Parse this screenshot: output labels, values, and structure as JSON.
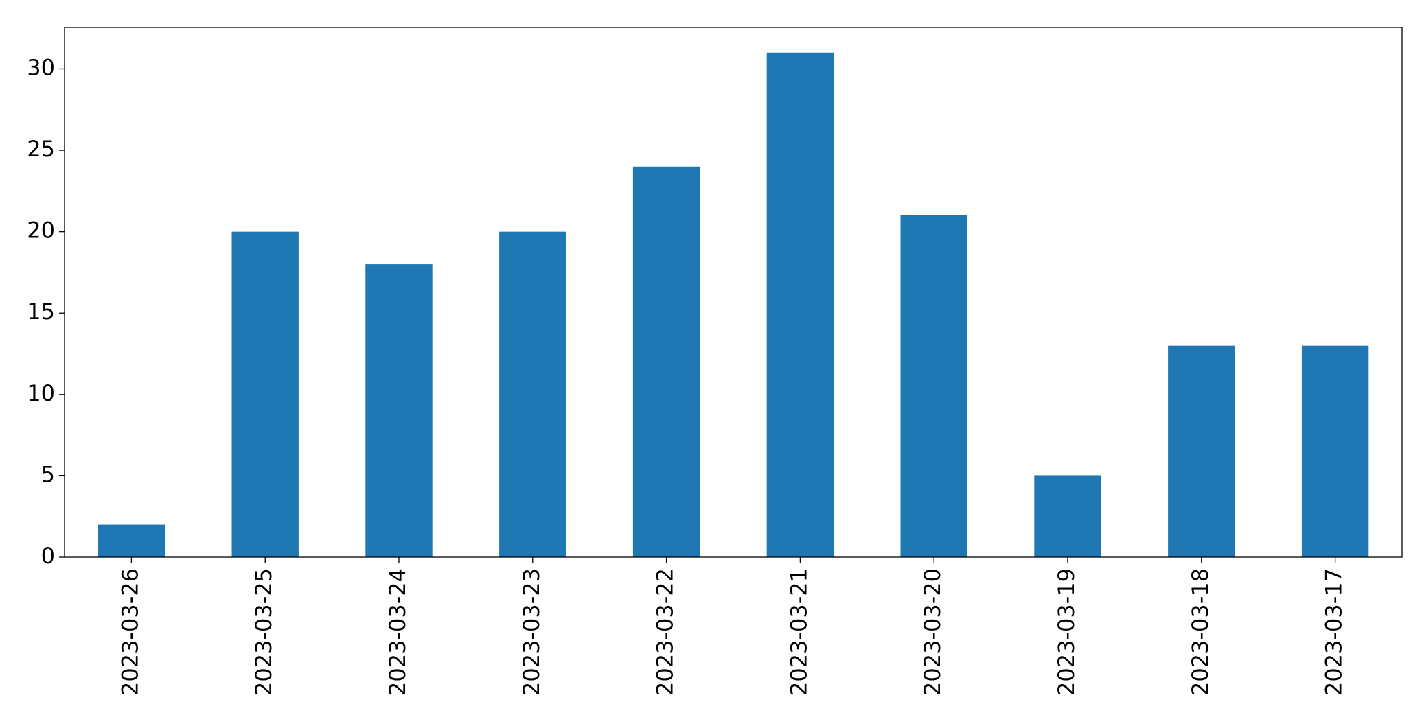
{
  "chart_data": {
    "type": "bar",
    "categories": [
      "2023-03-26",
      "2023-03-25",
      "2023-03-24",
      "2023-03-23",
      "2023-03-22",
      "2023-03-21",
      "2023-03-20",
      "2023-03-19",
      "2023-03-18",
      "2023-03-17"
    ],
    "values": [
      2,
      20,
      18,
      20,
      24,
      31,
      21,
      5,
      13,
      13
    ],
    "color": "#1f77b4",
    "ylim": [
      0,
      32.55
    ],
    "yticks": [
      0,
      5,
      10,
      15,
      20,
      25,
      30
    ],
    "grid": false
  }
}
